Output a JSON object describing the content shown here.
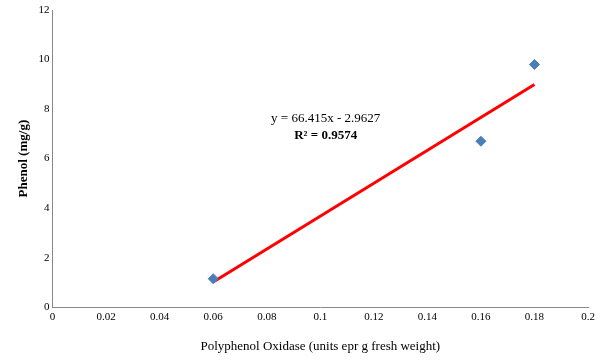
{
  "chart_data": {
    "type": "scatter",
    "x_label": "Polyphenol Oxidase (units epr g fresh weight)",
    "y_label": "Phenol (mg/g)",
    "series": [
      {
        "color": "#4a7ebb",
        "marker": "diamond",
        "x": [
          0.06,
          0.16,
          0.18
        ],
        "values": [
          1.15,
          6.7,
          9.8
        ]
      },
      {
        "type": "line",
        "color": "#ff0000",
        "marker": "none",
        "line_style": "solid",
        "x": [
          0.06,
          0.18
        ],
        "values": [
          1.02,
          8.99
        ]
      }
    ],
    "annotations": [
      "y = 66.415x - 2.9627",
      "R² = 0.9574"
    ],
    "xlim": [
      0,
      0.2
    ],
    "xticks": [
      0,
      0.02,
      0.04,
      0.06,
      0.08,
      0.1,
      0.12,
      0.14,
      0.16,
      0.18,
      0.2
    ],
    "ylim": [
      0,
      12
    ],
    "yticks": [
      0,
      2,
      4,
      6,
      8,
      10,
      12
    ],
    "grid": false
  }
}
